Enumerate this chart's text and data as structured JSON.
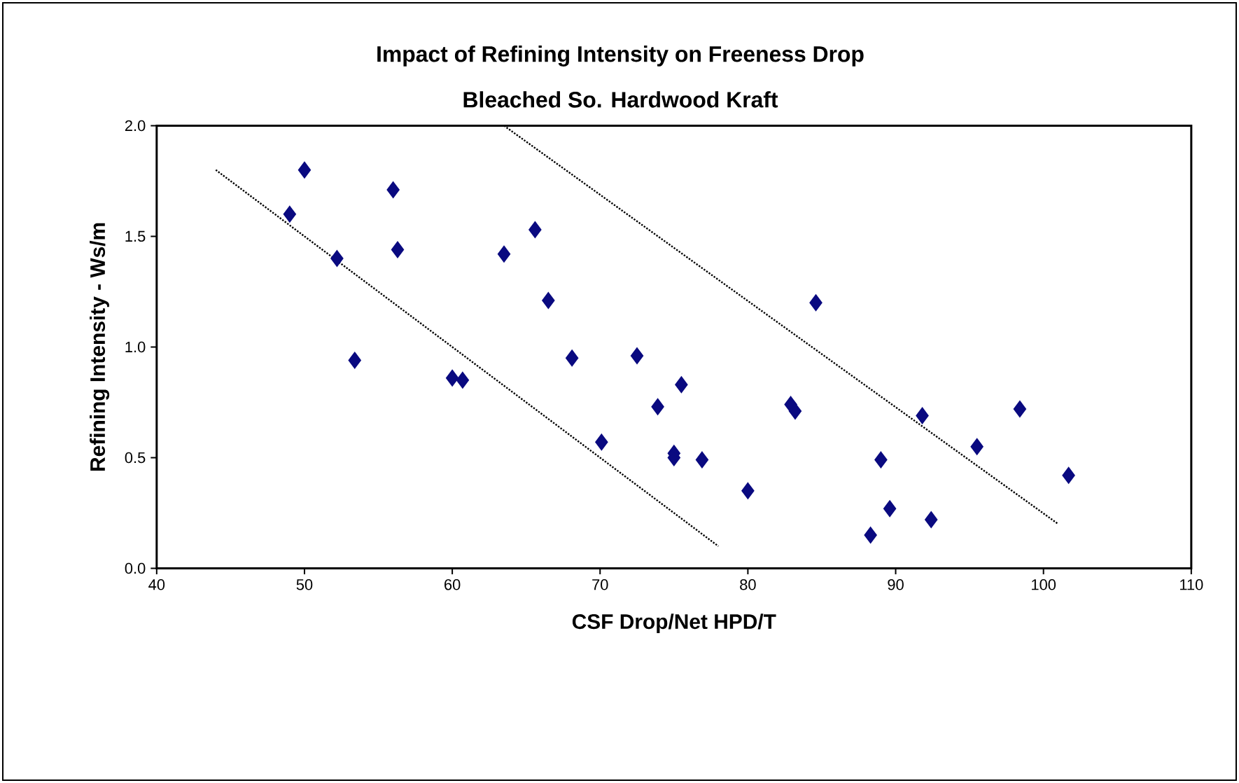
{
  "chart_data": {
    "type": "scatter",
    "title": "Impact of Refining Intensity on Freeness Drop",
    "subtitle": "Bleached So. Hardwood Kraft",
    "xlabel": "CSF Drop/Net HPD/T",
    "ylabel": "Refining Intensity - Ws/m",
    "xlim": [
      40,
      110
    ],
    "xticks": [
      40,
      50,
      60,
      70,
      80,
      90,
      100,
      110
    ],
    "ylim": [
      0,
      2
    ],
    "yticks": [
      {
        "value": 0,
        "label": "0.0"
      },
      {
        "value": 0.5,
        "label": "0.5"
      },
      {
        "value": 1,
        "label": "1.0"
      },
      {
        "value": 1.5,
        "label": "1.5"
      },
      {
        "value": 2,
        "label": "2.0"
      }
    ],
    "grid": false,
    "marker": "diamond",
    "series": [
      {
        "color": "#0a0a80",
        "x": [
          49.0,
          50.0,
          52.2,
          53.4,
          56.0,
          56.3,
          60.0,
          60.7,
          63.5,
          65.6,
          66.5,
          68.1,
          70.1,
          72.5,
          73.9,
          75.0,
          75.5,
          76.9,
          80.0,
          82.9,
          83.2,
          84.6,
          88.3,
          89.0,
          91.8,
          92.4,
          98.4,
          101.7
        ],
        "values": [
          1.6,
          1.8,
          1.4,
          0.94,
          1.71,
          1.44,
          0.86,
          0.85,
          1.42,
          1.53,
          1.21,
          0.95,
          0.57,
          0.96,
          0.73,
          0.52,
          0.83,
          0.49,
          0.35,
          0.74,
          0.71,
          1.2,
          0.15,
          0.49,
          0.69,
          0.22,
          0.72,
          0.42
        ]
      },
      {
        "color": "#0a0a80",
        "x": [
          75.0,
          89.6,
          95.5
        ],
        "values": [
          0.5,
          0.27,
          0.55
        ]
      },
      {
        "type": "line",
        "color": "#000000",
        "line_style": "dotted",
        "marker": "none",
        "x": [
          44,
          78
        ],
        "values": [
          1.8,
          0.1
        ]
      },
      {
        "type": "line",
        "color": "#000000",
        "line_style": "dotted",
        "marker": "none",
        "x": [
          63.5,
          101
        ],
        "values": [
          2.0,
          0.2
        ]
      }
    ]
  }
}
